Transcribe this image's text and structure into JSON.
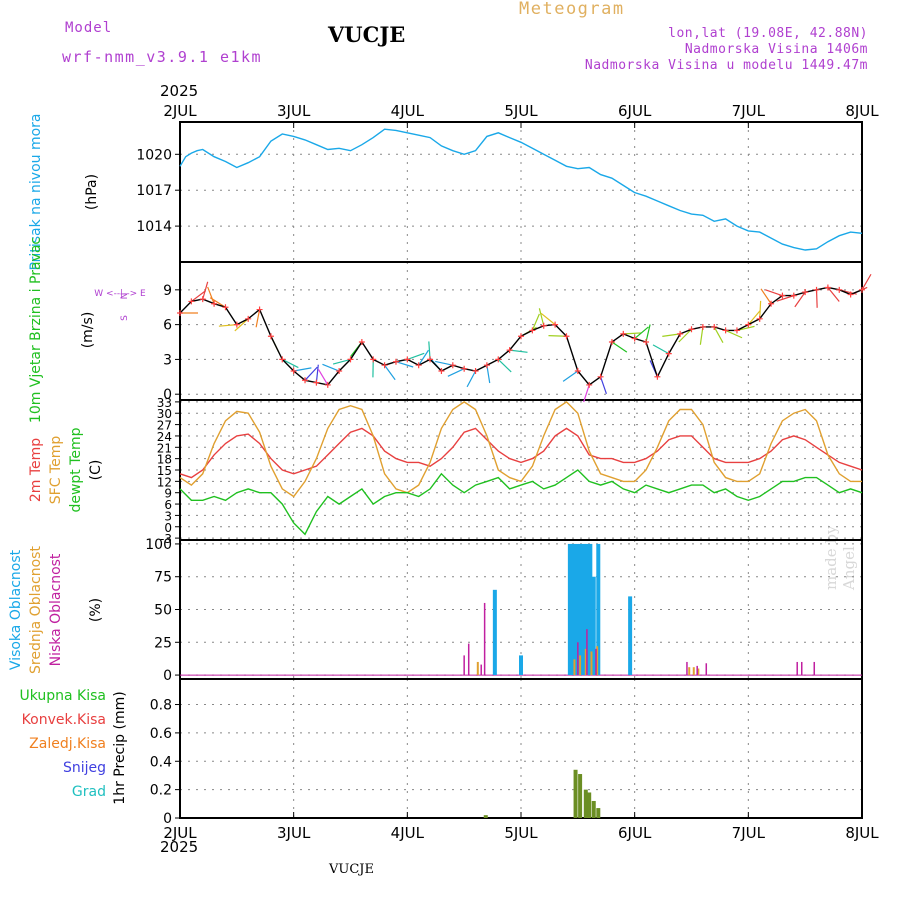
{
  "header": {
    "model_label": "Model",
    "model_name": "wrf-nmm_v3.9.1 e1km",
    "station": "VUCJE",
    "chart_kind": "Meteogram",
    "coords": "lon,lat (19.08E, 42.88N)",
    "elevation": "Nadmorska Visina 1406m",
    "model_elevation": "Nadmorska Visina u modelu 1449.47m",
    "year": "2025",
    "footer_station": "VUCJE",
    "watermark": "made by Angel"
  },
  "colors": {
    "pressure": "#1aa8e8",
    "wind_speed": "#ff4040",
    "temp_2m": "#e84040",
    "temp_sfc": "#e0a030",
    "dewpoint": "#20c020",
    "cloud_high": "#1aa8e8",
    "cloud_mid": "#e0a030",
    "cloud_low": "#c020a0",
    "precip_total": "#20c020",
    "precip_conv": "#e84040",
    "precip_frz": "#f08020",
    "snow": "#4040e0",
    "hail": "#20c0c0",
    "title_purple": "#b040d0",
    "meteogram_label": "#e0b060"
  },
  "chart_data": [
    {
      "type": "line",
      "panel": "pressure",
      "ylabel": "Pritisak na nivou mora",
      "unit": "(hPa)",
      "x_ticks": [
        "2JUL",
        "3JUL",
        "4JUL",
        "5JUL",
        "6JUL",
        "7JUL",
        "8JUL"
      ],
      "yticks": [
        1014,
        1017,
        1020
      ],
      "ylim": [
        1011.0,
        1022.7
      ],
      "grid": true,
      "series": [
        {
          "x": [
            0,
            0.05,
            0.1,
            0.15,
            0.2,
            0.3,
            0.4,
            0.5,
            0.6,
            0.7,
            0.8,
            0.9,
            1.0,
            1.1,
            1.2,
            1.3,
            1.4,
            1.5,
            1.6,
            1.7,
            1.8,
            1.9,
            2.0,
            2.1,
            2.2,
            2.3,
            2.4,
            2.5,
            2.6,
            2.7,
            2.8,
            2.9,
            3.0,
            3.1,
            3.2,
            3.3,
            3.4,
            3.5,
            3.6,
            3.7,
            3.8,
            3.9,
            4.0,
            4.1,
            4.2,
            4.3,
            4.4,
            4.5,
            4.6,
            4.7,
            4.8,
            4.9,
            5.0,
            5.1,
            5.2,
            5.3,
            5.4,
            5.5,
            5.6,
            5.7,
            5.8,
            5.9,
            6.0
          ],
          "values": [
            1019.0,
            1019.8,
            1020.1,
            1020.3,
            1020.4,
            1019.8,
            1019.4,
            1018.9,
            1019.3,
            1019.8,
            1021.1,
            1021.7,
            1021.5,
            1021.2,
            1020.8,
            1020.4,
            1020.5,
            1020.3,
            1020.8,
            1021.4,
            1022.1,
            1022.0,
            1021.8,
            1021.6,
            1021.4,
            1020.7,
            1020.3,
            1020.0,
            1020.3,
            1021.5,
            1021.8,
            1021.4,
            1021.0,
            1020.5,
            1020.0,
            1019.5,
            1019.0,
            1018.8,
            1018.9,
            1018.3,
            1018.0,
            1017.4,
            1016.8,
            1016.5,
            1016.1,
            1015.7,
            1015.3,
            1015.0,
            1014.9,
            1014.4,
            1014.6,
            1014.0,
            1013.6,
            1013.5,
            1013.0,
            1012.5,
            1012.2,
            1012.0,
            1012.1,
            1012.7,
            1013.2,
            1013.5,
            1013.4
          ]
        }
      ]
    },
    {
      "type": "line",
      "panel": "wind",
      "ylabel": "10m Vjetar Brzina i Pravac",
      "unit": "(m/s)",
      "direction_legend": [
        "N",
        "W <--|--> E",
        "S"
      ],
      "yticks": [
        0,
        3,
        6,
        9
      ],
      "ylim": [
        -0.5,
        11.4
      ],
      "grid": true,
      "series": [
        {
          "name": "Brzina",
          "x": [
            0,
            0.1,
            0.2,
            0.3,
            0.4,
            0.5,
            0.6,
            0.7,
            0.8,
            0.9,
            1.0,
            1.1,
            1.2,
            1.3,
            1.4,
            1.5,
            1.6,
            1.7,
            1.8,
            1.9,
            2.0,
            2.1,
            2.2,
            2.3,
            2.4,
            2.5,
            2.6,
            2.7,
            2.8,
            2.9,
            3.0,
            3.1,
            3.2,
            3.3,
            3.4,
            3.5,
            3.6,
            3.7,
            3.8,
            3.9,
            4.0,
            4.1,
            4.2,
            4.3,
            4.4,
            4.5,
            4.6,
            4.7,
            4.8,
            4.9,
            5.0,
            5.1,
            5.2,
            5.3,
            5.4,
            5.5,
            5.6,
            5.7,
            5.8,
            5.9,
            6.0
          ],
          "values": [
            7.0,
            8.0,
            8.2,
            7.8,
            7.5,
            6.0,
            6.5,
            7.3,
            5.0,
            3.0,
            2.0,
            1.2,
            1.0,
            0.8,
            2.0,
            3.0,
            4.5,
            3.0,
            2.5,
            2.8,
            3.0,
            2.5,
            3.0,
            2.0,
            2.5,
            2.2,
            2.0,
            2.5,
            3.0,
            3.8,
            5.0,
            5.5,
            5.9,
            6.0,
            5.0,
            2.0,
            0.8,
            1.5,
            4.5,
            5.2,
            4.8,
            4.5,
            1.5,
            3.5,
            5.2,
            5.6,
            5.8,
            5.8,
            5.5,
            5.5,
            6.0,
            6.5,
            7.8,
            8.5,
            8.5,
            8.8,
            9.0,
            9.2,
            9.0,
            8.6,
            9.0
          ]
        }
      ]
    },
    {
      "type": "line",
      "panel": "temperature",
      "ylabels": [
        "2m Temp",
        "SFC Temp",
        "dewpt Temp"
      ],
      "unit": "(C)",
      "yticks": [
        -3,
        0,
        3,
        6,
        9,
        12,
        15,
        18,
        21,
        24,
        27,
        30,
        33
      ],
      "ylim": [
        -3.5,
        33.5
      ],
      "grid": true,
      "series": [
        {
          "name": "2m Temp",
          "x": [
            0,
            0.1,
            0.2,
            0.3,
            0.4,
            0.5,
            0.6,
            0.7,
            0.8,
            0.9,
            1.0,
            1.1,
            1.2,
            1.3,
            1.4,
            1.5,
            1.6,
            1.7,
            1.8,
            1.9,
            2.0,
            2.1,
            2.2,
            2.3,
            2.4,
            2.5,
            2.6,
            2.7,
            2.8,
            2.9,
            3.0,
            3.1,
            3.2,
            3.3,
            3.4,
            3.5,
            3.6,
            3.7,
            3.8,
            3.9,
            4.0,
            4.1,
            4.2,
            4.3,
            4.4,
            4.5,
            4.6,
            4.7,
            4.8,
            4.9,
            5.0,
            5.1,
            5.2,
            5.3,
            5.4,
            5.5,
            5.6,
            5.7,
            5.8,
            5.9,
            6.0
          ],
          "values": [
            14,
            13,
            15,
            19,
            22,
            24,
            24.5,
            22,
            18,
            15,
            14,
            15,
            16,
            19,
            22,
            25,
            26,
            24,
            20,
            18,
            17,
            17,
            16,
            18,
            21,
            25,
            26,
            23,
            20,
            18,
            17,
            18,
            20,
            24,
            26,
            24,
            19,
            18,
            18,
            17,
            17,
            18,
            20,
            23,
            24,
            24,
            21,
            18,
            17,
            17,
            17,
            18,
            20,
            23,
            24,
            23,
            21,
            19,
            17,
            16,
            15
          ]
        },
        {
          "name": "SFC Temp",
          "x": [
            0,
            0.1,
            0.2,
            0.3,
            0.4,
            0.5,
            0.6,
            0.7,
            0.8,
            0.9,
            1.0,
            1.1,
            1.2,
            1.3,
            1.4,
            1.5,
            1.6,
            1.7,
            1.8,
            1.9,
            2.0,
            2.1,
            2.2,
            2.3,
            2.4,
            2.5,
            2.6,
            2.7,
            2.8,
            2.9,
            3.0,
            3.1,
            3.2,
            3.3,
            3.4,
            3.5,
            3.6,
            3.7,
            3.8,
            3.9,
            4.0,
            4.1,
            4.2,
            4.3,
            4.4,
            4.5,
            4.6,
            4.7,
            4.8,
            4.9,
            5.0,
            5.1,
            5.2,
            5.3,
            5.4,
            5.5,
            5.6,
            5.7,
            5.8,
            5.9,
            6.0
          ],
          "values": [
            13,
            11,
            14,
            22,
            28,
            30.5,
            30,
            25,
            16,
            10,
            8,
            12,
            18,
            26,
            31,
            32,
            31,
            24,
            14,
            10,
            9,
            11,
            17,
            26,
            31,
            33,
            31,
            24,
            15,
            13,
            12,
            16,
            24,
            31,
            33,
            30,
            20,
            14,
            13,
            12,
            12,
            15,
            21,
            28,
            31,
            31,
            27,
            17,
            13,
            12,
            12,
            14,
            22,
            28,
            30,
            31,
            28,
            19,
            14,
            12,
            12
          ]
        },
        {
          "name": "dewpt Temp",
          "x": [
            0,
            0.1,
            0.2,
            0.3,
            0.4,
            0.5,
            0.6,
            0.7,
            0.8,
            0.9,
            1.0,
            1.1,
            1.2,
            1.3,
            1.4,
            1.5,
            1.6,
            1.7,
            1.8,
            1.9,
            2.0,
            2.1,
            2.2,
            2.3,
            2.4,
            2.5,
            2.6,
            2.7,
            2.8,
            2.9,
            3.0,
            3.1,
            3.2,
            3.3,
            3.4,
            3.5,
            3.6,
            3.7,
            3.8,
            3.9,
            4.0,
            4.1,
            4.2,
            4.3,
            4.4,
            4.5,
            4.6,
            4.7,
            4.8,
            4.9,
            5.0,
            5.1,
            5.2,
            5.3,
            5.4,
            5.5,
            5.6,
            5.7,
            5.8,
            5.9,
            6.0
          ],
          "values": [
            10,
            7,
            7,
            8,
            7,
            9,
            10,
            9,
            9,
            6,
            1,
            -2,
            4,
            8,
            6,
            8,
            10,
            6,
            8,
            9,
            9,
            8,
            10,
            14,
            11,
            9,
            11,
            12,
            13,
            10,
            11,
            12,
            10,
            11,
            13,
            15,
            12,
            11,
            12,
            10,
            9,
            11,
            10,
            9,
            10,
            11,
            11,
            9,
            10,
            8,
            7,
            8,
            10,
            12,
            12,
            13,
            13,
            11,
            9,
            10,
            9
          ]
        }
      ]
    },
    {
      "type": "bar",
      "panel": "cloud",
      "ylabels": [
        "Visoka Oblacnost",
        "Srednja Oblacnost",
        "Niska Oblacnost"
      ],
      "unit": "(%)",
      "yticks": [
        0,
        25,
        50,
        75,
        100
      ],
      "ylim": [
        -3,
        103
      ],
      "grid": true,
      "series": [
        {
          "name": "Visoka Oblacnost",
          "x": [
            2.77,
            3.0,
            3.43,
            3.46,
            3.49,
            3.52,
            3.55,
            3.58,
            3.61,
            3.64,
            3.68,
            3.96
          ],
          "values": [
            65,
            15,
            100,
            100,
            100,
            100,
            100,
            100,
            100,
            75,
            100,
            60
          ]
        },
        {
          "name": "Srednja Oblacnost",
          "x": [
            2.62,
            3.47,
            3.52,
            3.57,
            3.62,
            3.67,
            4.48,
            4.52,
            4.56
          ],
          "values": [
            10,
            12,
            15,
            20,
            18,
            22,
            6,
            6,
            5
          ]
        },
        {
          "name": "Niska Oblacnost",
          "x": [
            2.5,
            2.54,
            2.65,
            2.68,
            3.5,
            3.58,
            3.66,
            4.46,
            4.55,
            4.63,
            5.43,
            5.47,
            5.58
          ],
          "values": [
            15,
            24,
            8,
            55,
            25,
            35,
            20,
            10,
            7,
            9,
            10,
            10,
            10
          ]
        }
      ]
    },
    {
      "type": "bar",
      "panel": "precip",
      "ylabels": [
        "Ukupna Kisa",
        "Konvek.Kisa",
        "Zaledj.Kisa",
        "Snijeg",
        "Grad"
      ],
      "ylabel_side": "1hr Precip",
      "unit": "(mm)",
      "yticks": [
        0,
        0.2,
        0.4,
        0.6,
        0.8
      ],
      "ylim": [
        0,
        0.98
      ],
      "x_ticks": [
        "2JUL",
        "3JUL",
        "4JUL",
        "5JUL",
        "6JUL",
        "7JUL",
        "8JUL"
      ],
      "grid": true,
      "series": [
        {
          "name": "Ukupna Kisa",
          "x": [
            2.69,
            3.48,
            3.52,
            3.57,
            3.6,
            3.64,
            3.68
          ],
          "values": [
            0.02,
            0.34,
            0.31,
            0.2,
            0.18,
            0.12,
            0.07
          ]
        }
      ]
    }
  ]
}
